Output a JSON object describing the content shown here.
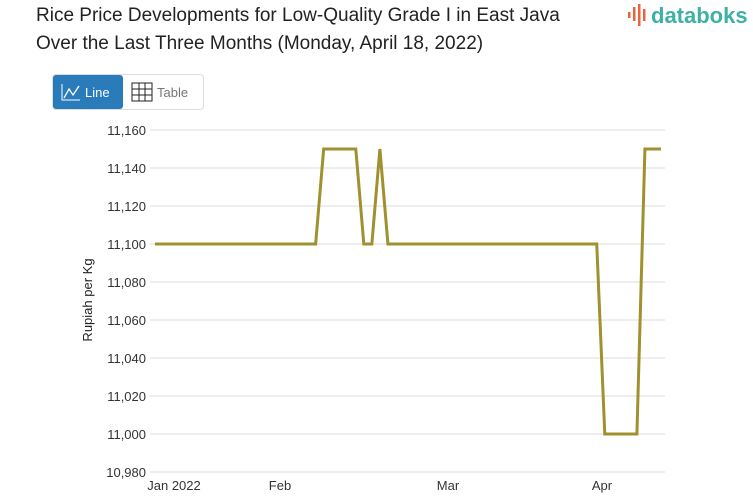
{
  "title_line1": "Rice Price Developments for Low-Quality Grade I in East Java",
  "title_line2": "Over the Last Three Months (Monday, April 18, 2022)",
  "logo": "databoks",
  "toggle": {
    "line_label": "Line",
    "table_label": "Table",
    "active": "Line"
  },
  "chart_data": {
    "type": "line",
    "title": "Rice Price Developments for Low-Quality Grade I in East Java Over the Last Three Months (Monday, April 18, 2022)",
    "ylabel": "Rupiah per Kg",
    "xlabel": "",
    "ylim": [
      10980,
      11160
    ],
    "yticks": [
      "10,980",
      "11,000",
      "11,020",
      "11,040",
      "11,060",
      "11,080",
      "11,100",
      "11,120",
      "11,140",
      "11,160"
    ],
    "ytick_values": [
      10980,
      11000,
      11020,
      11040,
      11060,
      11080,
      11100,
      11120,
      11140,
      11160
    ],
    "xticks": [
      "Jan 2022",
      "Feb",
      "Mar",
      "Apr"
    ],
    "grid": true,
    "line_color": "#a0902e",
    "series": [
      {
        "values": [
          11100,
          11100,
          11100,
          11100,
          11100,
          11100,
          11100,
          11100,
          11100,
          11100,
          11100,
          11100,
          11100,
          11100,
          11100,
          11100,
          11100,
          11100,
          11100,
          11100,
          11100,
          11150,
          11150,
          11150,
          11150,
          11150,
          11100,
          11100,
          11150,
          11100,
          11100,
          11100,
          11100,
          11100,
          11100,
          11100,
          11100,
          11100,
          11100,
          11100,
          11100,
          11100,
          11100,
          11100,
          11100,
          11100,
          11100,
          11100,
          11100,
          11100,
          11100,
          11100,
          11100,
          11100,
          11100,
          11100,
          11000,
          11000,
          11000,
          11000,
          11000,
          11150,
          11150,
          11150
        ]
      }
    ]
  }
}
